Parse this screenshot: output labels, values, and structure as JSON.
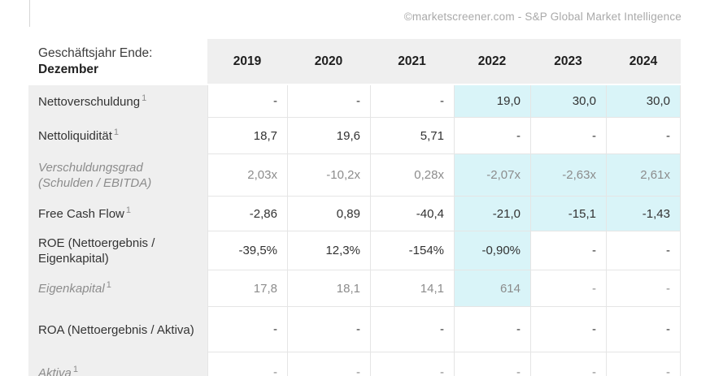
{
  "watermark": "©marketscreener.com - S&P Global Market Intelligence",
  "table": {
    "header": {
      "label_line1": "Geschäftsjahr Ende:",
      "label_line2": "Dezember",
      "years": [
        "2019",
        "2020",
        "2021",
        "2022",
        "2023",
        "2024"
      ]
    },
    "rows": [
      {
        "label": "Nettoverschuldung",
        "footnote": "1",
        "muted": false,
        "values": [
          "-",
          "-",
          "-",
          "19,0",
          "30,0",
          "30,0"
        ],
        "highlights": [
          0,
          0,
          0,
          1,
          1,
          1
        ]
      },
      {
        "label": "Nettoliquidität",
        "footnote": "1",
        "muted": false,
        "values": [
          "18,7",
          "19,6",
          "5,71",
          "-",
          "-",
          "-"
        ],
        "highlights": [
          0,
          0,
          0,
          0,
          0,
          0
        ]
      },
      {
        "label": "Verschuldungsgrad (Schulden / EBITDA)",
        "footnote": "",
        "muted": true,
        "values": [
          "2,03x",
          "-10,2x",
          "0,28x",
          "-2,07x",
          "-2,63x",
          "2,61x"
        ],
        "highlights": [
          0,
          0,
          0,
          1,
          1,
          1
        ]
      },
      {
        "label": "Free Cash Flow",
        "footnote": "1",
        "muted": false,
        "values": [
          "-2,86",
          "0,89",
          "-40,4",
          "-21,0",
          "-15,1",
          "-1,43"
        ],
        "highlights": [
          0,
          0,
          0,
          1,
          1,
          1
        ]
      },
      {
        "label": "ROE (Nettoergebnis / Eigenkapital)",
        "footnote": "",
        "muted": false,
        "values": [
          "-39,5%",
          "12,3%",
          "-154%",
          "-0,90%",
          "-",
          "-"
        ],
        "highlights": [
          0,
          0,
          0,
          1,
          0,
          0
        ]
      },
      {
        "label": "Eigenkapital",
        "footnote": "1",
        "muted": true,
        "values": [
          "17,8",
          "18,1",
          "14,1",
          "614",
          "-",
          "-"
        ],
        "highlights": [
          0,
          0,
          0,
          1,
          0,
          0
        ]
      },
      {
        "label": "ROA (Nettoergebnis / Aktiva)",
        "footnote": "",
        "muted": false,
        "values": [
          "-",
          "-",
          "-",
          "-",
          "-",
          "-"
        ],
        "highlights": [
          0,
          0,
          0,
          0,
          0,
          0
        ]
      },
      {
        "label": "Aktiva",
        "footnote": "1",
        "muted": true,
        "values": [
          "-",
          "-",
          "-",
          "-",
          "-",
          "-"
        ],
        "highlights": [
          0,
          0,
          0,
          0,
          0,
          0
        ]
      }
    ]
  },
  "colors": {
    "estimate_highlight": "#d9f4f8",
    "header_bg": "#efefef",
    "label_bg": "#efefef",
    "divider": "#e5e5e5",
    "text_dark": "#323232",
    "text_muted": "#8c8c8c",
    "watermark": "#a9a9a9"
  }
}
